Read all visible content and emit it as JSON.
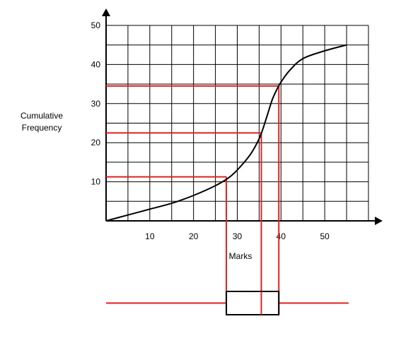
{
  "chart_data": {
    "type": "line",
    "xlabel": "Marks",
    "ylabel_lines": [
      "Cumulative",
      "Frequency"
    ],
    "xlim": [
      0,
      60
    ],
    "ylim": [
      0,
      50
    ],
    "grid": true,
    "grid_x_step": 5,
    "grid_y_step": 5,
    "x_ticks": [
      10,
      20,
      30,
      40,
      50
    ],
    "y_ticks": [
      10,
      20,
      30,
      40,
      50
    ],
    "series": [
      {
        "x": [
          0,
          5,
          10,
          15,
          20,
          25,
          28,
          30,
          33,
          35,
          36,
          37,
          38,
          39,
          40,
          42,
          45,
          50,
          55
        ],
        "y": [
          0,
          1.5,
          3,
          4.5,
          6.5,
          9,
          11,
          13,
          17,
          21,
          24,
          27.5,
          31,
          33.5,
          35.5,
          38.5,
          41.5,
          43.5,
          45
        ],
        "color": "#000000"
      }
    ],
    "reference_lines": [
      {
        "y": 11.25,
        "x": 27.5,
        "color": "#e02020"
      },
      {
        "y": 22.5,
        "x": 35.5,
        "color": "#e02020"
      },
      {
        "y": 34.5,
        "x": 39.5,
        "color": "#e02020"
      }
    ],
    "box_plot": {
      "q1": 27.5,
      "median": 35.5,
      "q3": 39.5,
      "whisker_min": 0,
      "whisker_max": 55,
      "color_box": "#000000",
      "color_lines": "#e02020"
    }
  }
}
